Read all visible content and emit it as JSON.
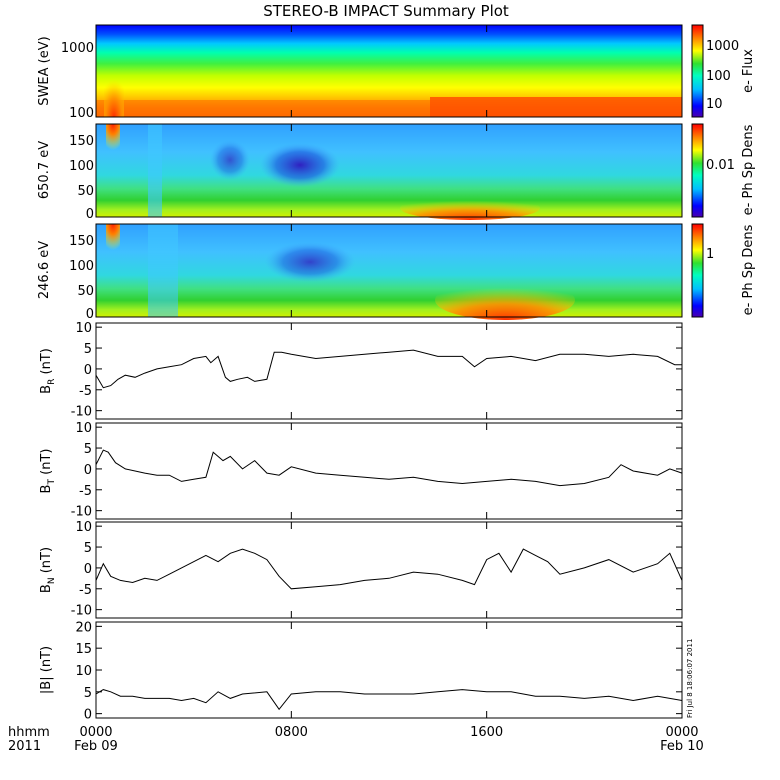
{
  "chart_data": {
    "title": "STEREO-B IMPACT Summary Plot",
    "x_axis": {
      "ticks": [
        {
          "t": 0,
          "label": "0000",
          "sublabel": "Feb 09"
        },
        {
          "t": 8,
          "label": "0800",
          "sublabel": ""
        },
        {
          "t": 16,
          "label": "1600",
          "sublabel": ""
        },
        {
          "t": 24,
          "label": "0000",
          "sublabel": "Feb 10"
        }
      ],
      "corner_label": "hhmm",
      "corner_year": "2011",
      "range_hours": [
        0,
        24
      ]
    },
    "timestamp": "Fri Jul 8 18:06:07 2011",
    "spectrograms": [
      {
        "id": "swea",
        "type": "heatmap",
        "ylabel": "SWEA (eV)",
        "yscale": "log",
        "yticks": [
          "1000",
          "100"
        ],
        "colorbar_label": "e- Flux",
        "colorbar_ticks": [
          "1000",
          "100",
          "10"
        ]
      },
      {
        "id": "pad650",
        "type": "heatmap",
        "ylabel": "650.7 eV",
        "yscale": "linear",
        "ylim": [
          0,
          180
        ],
        "yticks": [
          "150",
          "100",
          "50",
          "0"
        ],
        "colorbar_label": "e- Ph Sp Dens",
        "colorbar_ticks": [
          "0.01"
        ]
      },
      {
        "id": "pad246",
        "type": "heatmap",
        "ylabel": "246.6 eV",
        "yscale": "linear",
        "ylim": [
          0,
          180
        ],
        "yticks": [
          "150",
          "100",
          "50",
          "0"
        ],
        "colorbar_label": "e- Ph Sp Dens",
        "colorbar_ticks": [
          "1"
        ]
      }
    ],
    "line_panels": [
      {
        "id": "br",
        "type": "line",
        "ylabel_main": "B",
        "ylabel_sub": "R",
        "ylabel_unit": "(nT)",
        "ylim": [
          -12,
          11
        ],
        "yticks": [
          "10",
          "5",
          "0",
          "-5",
          "-10"
        ],
        "x": [
          0,
          0.3,
          0.6,
          0.9,
          1.2,
          1.6,
          2.0,
          2.5,
          3.0,
          3.5,
          4.0,
          4.5,
          4.7,
          5.0,
          5.3,
          5.5,
          5.8,
          6.2,
          6.5,
          7.0,
          7.3,
          7.6,
          8.0,
          8.5,
          9,
          10,
          11,
          12,
          13,
          14,
          15,
          15.5,
          16,
          17,
          18,
          19,
          20,
          21,
          22,
          23,
          23.7,
          24
        ],
        "y": [
          -1.5,
          -4.5,
          -4,
          -2.5,
          -1.5,
          -2,
          -1,
          0,
          0.5,
          1,
          2.5,
          3,
          1.5,
          3,
          -2,
          -3,
          -2.5,
          -2,
          -3,
          -2.5,
          4,
          4,
          3.5,
          3,
          2.5,
          3,
          3.5,
          4,
          4.5,
          3,
          3,
          0.5,
          2.5,
          3,
          2,
          3.5,
          3.5,
          3,
          3.5,
          3,
          1,
          1
        ]
      },
      {
        "id": "bt",
        "type": "line",
        "ylabel_main": "B",
        "ylabel_sub": "T",
        "ylabel_unit": "(nT)",
        "ylim": [
          -12,
          11
        ],
        "yticks": [
          "10",
          "5",
          "0",
          "-5",
          "-10"
        ],
        "x": [
          0,
          0.3,
          0.5,
          0.8,
          1.2,
          1.6,
          2.0,
          2.5,
          3.0,
          3.5,
          4.0,
          4.5,
          4.8,
          5.2,
          5.5,
          6,
          6.5,
          7,
          7.5,
          8,
          9,
          10,
          11,
          12,
          13,
          14,
          15,
          16,
          17,
          18,
          19,
          20,
          21,
          21.5,
          22,
          23,
          23.5,
          24
        ],
        "y": [
          1,
          4.5,
          4,
          1.5,
          0,
          -0.5,
          -1,
          -1.5,
          -1.5,
          -3,
          -2.5,
          -2,
          4,
          2,
          3,
          0,
          2,
          -1,
          -1.5,
          0.5,
          -1,
          -1.5,
          -2,
          -2.5,
          -2,
          -3,
          -3.5,
          -3,
          -2.5,
          -3,
          -4,
          -3.5,
          -2,
          1,
          -0.5,
          -1.5,
          0,
          -1
        ]
      },
      {
        "id": "bn",
        "type": "line",
        "ylabel_main": "B",
        "ylabel_sub": "N",
        "ylabel_unit": "(nT)",
        "ylim": [
          -12,
          11
        ],
        "yticks": [
          "10",
          "5",
          "0",
          "-5",
          "-10"
        ],
        "x": [
          0,
          0.3,
          0.6,
          1.0,
          1.5,
          2.0,
          2.5,
          3.0,
          3.5,
          4.0,
          4.5,
          5.0,
          5.5,
          6.0,
          6.5,
          7.0,
          7.5,
          8.0,
          9,
          10,
          11,
          12,
          13,
          14,
          15,
          15.5,
          16,
          16.5,
          17,
          17.5,
          18,
          18.5,
          19,
          20,
          21,
          22,
          23,
          23.5,
          24
        ],
        "y": [
          -3,
          1,
          -2,
          -3,
          -3.5,
          -2.5,
          -3,
          -1.5,
          0,
          1.5,
          3,
          1.5,
          3.5,
          4.5,
          3.5,
          2,
          -2,
          -5,
          -4.5,
          -4,
          -3,
          -2.5,
          -1,
          -1.5,
          -3,
          -4,
          2,
          3.5,
          -1,
          4.5,
          3,
          1.5,
          -1.5,
          0,
          2,
          -1,
          1,
          3.5,
          -3
        ]
      },
      {
        "id": "bmag",
        "type": "line",
        "ylabel_main": "|B|",
        "ylabel_sub": "",
        "ylabel_unit": "(nT)",
        "ylim": [
          -1,
          21
        ],
        "yticks": [
          "20",
          "15",
          "10",
          "5",
          "0"
        ],
        "x": [
          0,
          0.3,
          0.6,
          1.0,
          1.5,
          2.0,
          2.5,
          3.0,
          3.5,
          4.0,
          4.5,
          5.0,
          5.5,
          6.0,
          7.0,
          7.5,
          8.0,
          9,
          10,
          11,
          12,
          13,
          14,
          15,
          16,
          17,
          17.5,
          18,
          19,
          20,
          21,
          22,
          23,
          24
        ],
        "y": [
          4.5,
          5.5,
          5,
          4,
          4,
          3.5,
          3.5,
          3.5,
          3,
          3.5,
          2.5,
          5,
          3.5,
          4.5,
          5,
          1,
          4.5,
          5,
          5,
          4.5,
          4.5,
          4.5,
          5,
          5.5,
          5,
          5,
          4.5,
          4,
          4,
          3.5,
          4,
          3,
          4,
          3
        ]
      }
    ]
  }
}
